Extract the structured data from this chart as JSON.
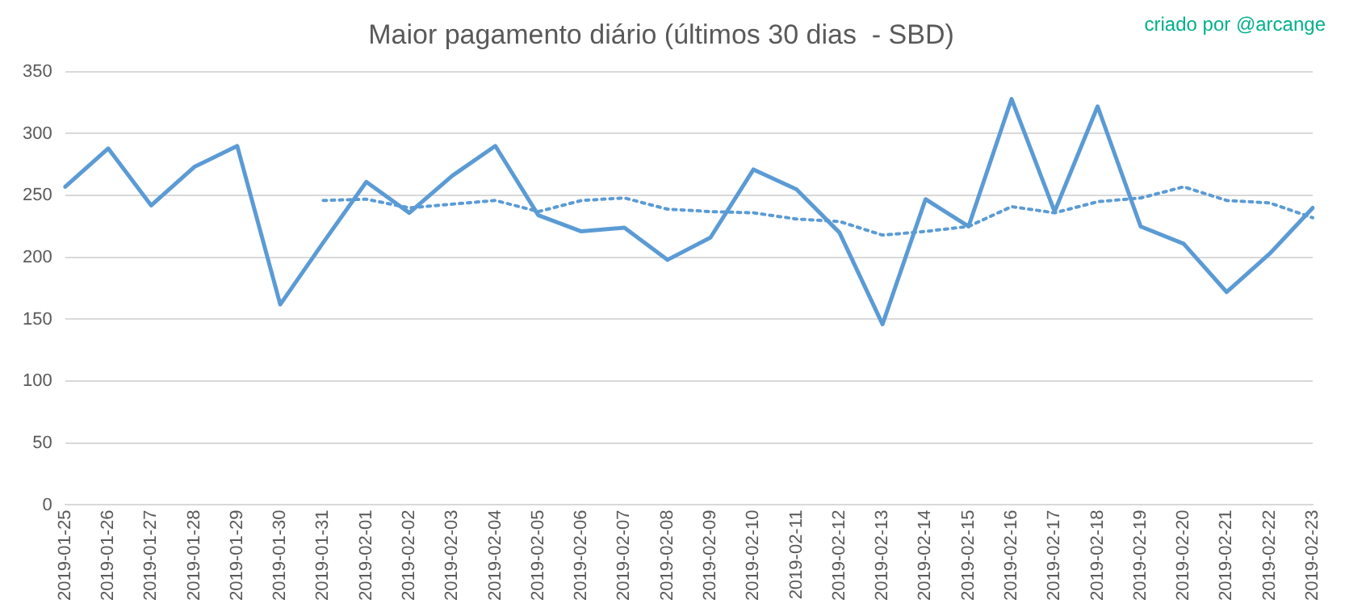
{
  "chart_data": {
    "type": "line",
    "title": "Maior pagamento diário (últimos 30 dias  - SBD)",
    "annotations": [
      "criado por @arcange"
    ],
    "categories": [
      "2019-01-25",
      "2019-01-26",
      "2019-01-27",
      "2019-01-28",
      "2019-01-29",
      "2019-01-30",
      "2019-01-31",
      "2019-02-01",
      "2019-02-02",
      "2019-02-03",
      "2019-02-04",
      "2019-02-05",
      "2019-02-06",
      "2019-02-07",
      "2019-02-08",
      "2019-02-09",
      "2019-02-10",
      "2019-02-11",
      "2019-02-12",
      "2019-02-13",
      "2019-02-14",
      "2019-02-15",
      "2019-02-16",
      "2019-02-17",
      "2019-02-18",
      "2019-02-19",
      "2019-02-20",
      "2019-02-21",
      "2019-02-22",
      "2019-02-23"
    ],
    "series": [
      {
        "color": "#5b9bd5",
        "line_style": "solid",
        "values": [
          257,
          288,
          242,
          273,
          290,
          162,
          212,
          261,
          236,
          266,
          290,
          234,
          221,
          224,
          198,
          216,
          271,
          255,
          220,
          146,
          247,
          225,
          328,
          237,
          322,
          225,
          211,
          172,
          203,
          240
        ]
      },
      {
        "color": "#5b9bd5",
        "line_style": "dotted",
        "values": [
          null,
          null,
          null,
          null,
          null,
          null,
          246,
          247,
          240,
          243,
          246,
          237,
          246,
          248,
          239,
          237,
          236,
          231,
          229,
          218,
          221,
          225,
          241,
          236,
          245,
          248,
          257,
          246,
          244,
          232
        ]
      }
    ],
    "ylim": [
      0,
      350
    ],
    "yticks": [
      0,
      50,
      100,
      150,
      200,
      250,
      300,
      350
    ],
    "grid": "y",
    "legend": false,
    "marker": "none"
  }
}
